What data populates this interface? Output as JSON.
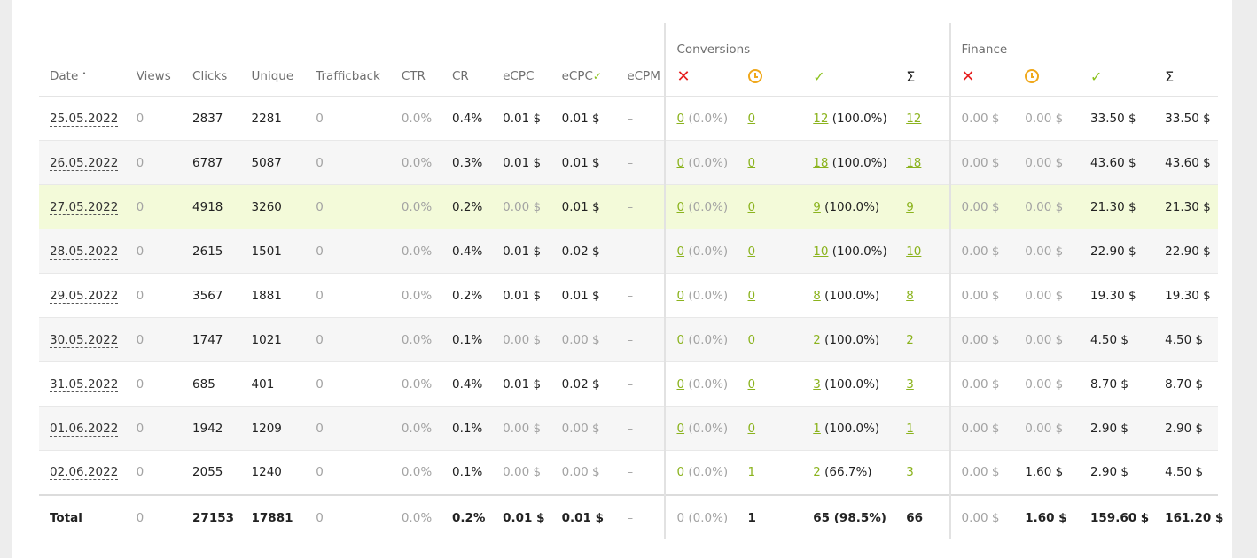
{
  "groups": {
    "conversions": "Conversions",
    "finance": "Finance"
  },
  "columns": {
    "date": "Date",
    "views": "Views",
    "clicks": "Clicks",
    "unique": "Unique",
    "trafficback": "Trafficback",
    "ctr": "CTR",
    "cr": "CR",
    "ecpc": "eCPC",
    "ecpc_approved": "eCPC",
    "ecpm": "eCPM",
    "sigma": "Σ"
  },
  "icons": {
    "sort": "sort-ascending-icon",
    "rejected": "cross-icon",
    "pending": "clock-icon",
    "approved": "check-icon",
    "total": "sigma-icon"
  },
  "colors": {
    "accent": "#8bb31e",
    "rejected": "#e61e1e",
    "pending": "#f0a81c",
    "approved": "#8bc21d",
    "highlight_row": "#f3fad9"
  },
  "rows": [
    {
      "date": "25.05.2022",
      "views": "0",
      "clicks": "2837",
      "unique": "2281",
      "trafficback": "0",
      "ctr": "0.0%",
      "cr": "0.4%",
      "ecpc": "0.01 $",
      "ecpc_approved": "0.01 $",
      "ecpm": "–",
      "conv_rejected": "0",
      "conv_rejected_pct": " (0.0%)",
      "conv_pending": "0",
      "conv_approved": "12",
      "conv_approved_pct": " (100.0%)",
      "conv_total": "12",
      "fin_rejected": "0.00 $",
      "fin_pending": "0.00 $",
      "fin_approved": "33.50 $",
      "fin_total": "33.50 $"
    },
    {
      "date": "26.05.2022",
      "views": "0",
      "clicks": "6787",
      "unique": "5087",
      "trafficback": "0",
      "ctr": "0.0%",
      "cr": "0.3%",
      "ecpc": "0.01 $",
      "ecpc_approved": "0.01 $",
      "ecpm": "–",
      "conv_rejected": "0",
      "conv_rejected_pct": " (0.0%)",
      "conv_pending": "0",
      "conv_approved": "18",
      "conv_approved_pct": " (100.0%)",
      "conv_total": "18",
      "fin_rejected": "0.00 $",
      "fin_pending": "0.00 $",
      "fin_approved": "43.60 $",
      "fin_total": "43.60 $"
    },
    {
      "date": "27.05.2022",
      "views": "0",
      "clicks": "4918",
      "unique": "3260",
      "trafficback": "0",
      "ctr": "0.0%",
      "cr": "0.2%",
      "ecpc": "0.00 $",
      "ecpc_approved": "0.01 $",
      "ecpm": "–",
      "conv_rejected": "0",
      "conv_rejected_pct": " (0.0%)",
      "conv_pending": "0",
      "conv_approved": "9",
      "conv_approved_pct": " (100.0%)",
      "conv_total": "9",
      "fin_rejected": "0.00 $",
      "fin_pending": "0.00 $",
      "fin_approved": "21.30 $",
      "fin_total": "21.30 $"
    },
    {
      "date": "28.05.2022",
      "views": "0",
      "clicks": "2615",
      "unique": "1501",
      "trafficback": "0",
      "ctr": "0.0%",
      "cr": "0.4%",
      "ecpc": "0.01 $",
      "ecpc_approved": "0.02 $",
      "ecpm": "–",
      "conv_rejected": "0",
      "conv_rejected_pct": " (0.0%)",
      "conv_pending": "0",
      "conv_approved": "10",
      "conv_approved_pct": " (100.0%)",
      "conv_total": "10",
      "fin_rejected": "0.00 $",
      "fin_pending": "0.00 $",
      "fin_approved": "22.90 $",
      "fin_total": "22.90 $"
    },
    {
      "date": "29.05.2022",
      "views": "0",
      "clicks": "3567",
      "unique": "1881",
      "trafficback": "0",
      "ctr": "0.0%",
      "cr": "0.2%",
      "ecpc": "0.01 $",
      "ecpc_approved": "0.01 $",
      "ecpm": "–",
      "conv_rejected": "0",
      "conv_rejected_pct": " (0.0%)",
      "conv_pending": "0",
      "conv_approved": "8",
      "conv_approved_pct": " (100.0%)",
      "conv_total": "8",
      "fin_rejected": "0.00 $",
      "fin_pending": "0.00 $",
      "fin_approved": "19.30 $",
      "fin_total": "19.30 $"
    },
    {
      "date": "30.05.2022",
      "views": "0",
      "clicks": "1747",
      "unique": "1021",
      "trafficback": "0",
      "ctr": "0.0%",
      "cr": "0.1%",
      "ecpc": "0.00 $",
      "ecpc_approved": "0.00 $",
      "ecpm": "–",
      "conv_rejected": "0",
      "conv_rejected_pct": " (0.0%)",
      "conv_pending": "0",
      "conv_approved": "2",
      "conv_approved_pct": " (100.0%)",
      "conv_total": "2",
      "fin_rejected": "0.00 $",
      "fin_pending": "0.00 $",
      "fin_approved": "4.50 $",
      "fin_total": "4.50 $"
    },
    {
      "date": "31.05.2022",
      "views": "0",
      "clicks": "685",
      "unique": "401",
      "trafficback": "0",
      "ctr": "0.0%",
      "cr": "0.4%",
      "ecpc": "0.01 $",
      "ecpc_approved": "0.02 $",
      "ecpm": "–",
      "conv_rejected": "0",
      "conv_rejected_pct": " (0.0%)",
      "conv_pending": "0",
      "conv_approved": "3",
      "conv_approved_pct": " (100.0%)",
      "conv_total": "3",
      "fin_rejected": "0.00 $",
      "fin_pending": "0.00 $",
      "fin_approved": "8.70 $",
      "fin_total": "8.70 $"
    },
    {
      "date": "01.06.2022",
      "views": "0",
      "clicks": "1942",
      "unique": "1209",
      "trafficback": "0",
      "ctr": "0.0%",
      "cr": "0.1%",
      "ecpc": "0.00 $",
      "ecpc_approved": "0.00 $",
      "ecpm": "–",
      "conv_rejected": "0",
      "conv_rejected_pct": " (0.0%)",
      "conv_pending": "0",
      "conv_approved": "1",
      "conv_approved_pct": " (100.0%)",
      "conv_total": "1",
      "fin_rejected": "0.00 $",
      "fin_pending": "0.00 $",
      "fin_approved": "2.90 $",
      "fin_total": "2.90 $"
    },
    {
      "date": "02.06.2022",
      "views": "0",
      "clicks": "2055",
      "unique": "1240",
      "trafficback": "0",
      "ctr": "0.0%",
      "cr": "0.1%",
      "ecpc": "0.00 $",
      "ecpc_approved": "0.00 $",
      "ecpm": "–",
      "conv_rejected": "0",
      "conv_rejected_pct": " (0.0%)",
      "conv_pending": "1",
      "conv_approved": "2",
      "conv_approved_pct": " (66.7%)",
      "conv_total": "3",
      "fin_rejected": "0.00 $",
      "fin_pending": "1.60 $",
      "fin_approved": "2.90 $",
      "fin_total": "4.50 $"
    }
  ],
  "total": {
    "label": "Total",
    "views": "0",
    "clicks": "27153",
    "unique": "17881",
    "trafficback": "0",
    "ctr": "0.0%",
    "cr": "0.2%",
    "ecpc": "0.01 $",
    "ecpc_approved": "0.01 $",
    "ecpm": "–",
    "conv_rejected": "0 (0.0%)",
    "conv_pending": "1",
    "conv_approved": "65 (98.5%)",
    "conv_total": "66",
    "fin_rejected": "0.00 $",
    "fin_pending": "1.60 $",
    "fin_approved": "159.60 $",
    "fin_total": "161.20 $"
  }
}
